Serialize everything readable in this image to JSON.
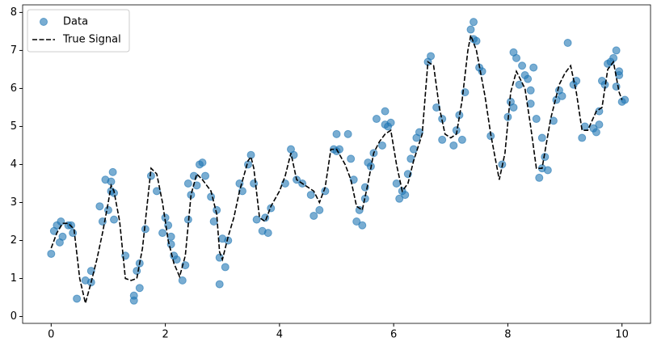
{
  "chart_data": {
    "type": "scatter",
    "xlim": [
      -0.5,
      10.5
    ],
    "ylim": [
      -0.18,
      8.2
    ],
    "xticks": [
      0,
      2,
      4,
      6,
      8,
      10
    ],
    "yticks": [
      0,
      1,
      2,
      3,
      4,
      5,
      6,
      7,
      8
    ],
    "legend": "upper left",
    "series": [
      {
        "name": "Data",
        "type": "scatter",
        "color": "#1f77b4",
        "x": [
          0,
          0.05,
          0.1,
          0.15,
          0.17,
          0.2,
          0.3,
          0.35,
          0.38,
          0.45,
          0.6,
          0.7,
          0.7,
          0.85,
          0.9,
          0.95,
          1.0,
          1.05,
          1.08,
          1.1,
          1.05,
          1.1,
          1.3,
          1.45,
          1.45,
          1.5,
          1.55,
          1.55,
          1.65,
          1.75,
          1.85,
          1.95,
          2.0,
          2.05,
          2.1,
          2.1,
          2.15,
          2.2,
          2.3,
          2.35,
          2.4,
          2.4,
          2.45,
          2.5,
          2.55,
          2.6,
          2.65,
          2.7,
          2.8,
          2.85,
          2.9,
          2.95,
          2.95,
          3.0,
          3.05,
          3.1,
          3.3,
          3.35,
          3.45,
          3.5,
          3.55,
          3.6,
          3.7,
          3.75,
          3.8,
          3.85,
          4.1,
          4.2,
          4.25,
          4.3,
          4.4,
          4.55,
          4.6,
          4.7,
          4.8,
          4.95,
          5.0,
          5.0,
          5.05,
          5.2,
          5.25,
          5.3,
          5.35,
          5.4,
          5.45,
          5.5,
          5.5,
          5.55,
          5.6,
          5.65,
          5.7,
          5.8,
          5.85,
          5.85,
          5.9,
          5.95,
          6.05,
          6.1,
          6.15,
          6.2,
          6.25,
          6.3,
          6.35,
          6.4,
          6.45,
          6.6,
          6.65,
          6.75,
          6.85,
          6.85,
          7.05,
          7.1,
          7.15,
          7.2,
          7.25,
          7.35,
          7.4,
          7.4,
          7.45,
          7.5,
          7.55,
          7.7,
          7.9,
          8.0,
          8.05,
          8.1,
          8.1,
          8.15,
          8.2,
          8.25,
          8.3,
          8.35,
          8.4,
          8.4,
          8.45,
          8.5,
          8.55,
          8.6,
          8.6,
          8.65,
          8.7,
          8.8,
          8.85,
          8.9,
          8.95,
          9.05,
          9.15,
          9.2,
          9.3,
          9.35,
          9.5,
          9.55,
          9.6,
          9.6,
          9.65,
          9.7,
          9.75,
          9.8,
          9.85,
          9.9,
          9.9,
          9.95,
          9.95,
          10.0,
          10.05
        ],
        "values": [
          1.65,
          2.25,
          2.4,
          1.95,
          2.5,
          2.1,
          2.4,
          2.4,
          2.2,
          0.47,
          0.95,
          0.9,
          1.2,
          2.9,
          2.5,
          3.6,
          2.8,
          3.3,
          3.8,
          3.25,
          3.55,
          2.55,
          1.6,
          0.55,
          0.42,
          1.2,
          0.75,
          1.4,
          2.3,
          3.7,
          3.3,
          2.2,
          2.6,
          2.4,
          2.1,
          1.9,
          1.6,
          1.5,
          0.95,
          1.35,
          2.55,
          3.5,
          3.2,
          3.7,
          3.45,
          4.0,
          4.05,
          3.7,
          3.15,
          2.5,
          2.8,
          0.85,
          1.55,
          2.05,
          1.3,
          2.0,
          3.5,
          3.3,
          4.0,
          4.25,
          3.5,
          2.55,
          2.25,
          2.6,
          2.2,
          2.85,
          3.5,
          4.4,
          4.25,
          3.6,
          3.5,
          3.2,
          2.65,
          2.8,
          3.3,
          4.4,
          4.8,
          4.35,
          4.4,
          4.8,
          4.15,
          3.6,
          2.5,
          2.8,
          2.4,
          3.1,
          3.4,
          4.05,
          3.95,
          4.3,
          5.2,
          4.5,
          5.4,
          5.05,
          5.0,
          5.1,
          3.5,
          3.1,
          3.3,
          3.2,
          3.75,
          4.15,
          4.4,
          4.7,
          4.85,
          6.7,
          6.85,
          5.5,
          5.2,
          4.65,
          4.5,
          4.9,
          5.3,
          4.65,
          5.9,
          7.55,
          7.75,
          7.3,
          7.25,
          6.55,
          6.45,
          4.75,
          4.0,
          5.25,
          5.65,
          5.5,
          6.95,
          6.8,
          6.1,
          6.6,
          6.35,
          6.25,
          5.6,
          5.95,
          6.55,
          5.2,
          3.65,
          4.7,
          3.9,
          4.2,
          3.85,
          5.15,
          5.7,
          5.95,
          5.8,
          7.2,
          6.1,
          6.2,
          4.7,
          5.0,
          4.95,
          4.85,
          5.05,
          5.4,
          6.2,
          6.1,
          6.65,
          6.7,
          6.8,
          7.0,
          6.05,
          6.45,
          6.35,
          5.65,
          5.7
        ]
      },
      {
        "name": "True Signal",
        "type": "line",
        "color": "#000000",
        "x": [
          0,
          0.1,
          0.2,
          0.3,
          0.4,
          0.5,
          0.6,
          0.7,
          0.8,
          0.9,
          1.0,
          1.05,
          1.1,
          1.2,
          1.3,
          1.4,
          1.5,
          1.6,
          1.7,
          1.75,
          1.85,
          1.95,
          2.05,
          2.15,
          2.25,
          2.35,
          2.45,
          2.55,
          2.65,
          2.8,
          2.9,
          2.95,
          3.0,
          3.1,
          3.2,
          3.3,
          3.45,
          3.5,
          3.55,
          3.65,
          3.75,
          3.85,
          4.0,
          4.1,
          4.2,
          4.3,
          4.5,
          4.6,
          4.7,
          4.8,
          4.9,
          5.0,
          5.15,
          5.25,
          5.35,
          5.45,
          5.55,
          5.65,
          5.75,
          5.85,
          5.95,
          6.05,
          6.15,
          6.25,
          6.35,
          6.5,
          6.6,
          6.7,
          6.8,
          6.9,
          7.0,
          7.1,
          7.2,
          7.3,
          7.35,
          7.45,
          7.6,
          7.7,
          7.85,
          7.95,
          8.05,
          8.15,
          8.3,
          8.4,
          8.5,
          8.6,
          8.75,
          8.9,
          9.0,
          9.1,
          9.2,
          9.3,
          9.4,
          9.55,
          9.65,
          9.75,
          9.85,
          9.95,
          10.0
        ],
        "values": [
          1.8,
          2.2,
          2.45,
          2.45,
          2.3,
          1.0,
          0.35,
          0.9,
          1.5,
          2.2,
          3.0,
          3.45,
          3.3,
          2.5,
          1.0,
          0.95,
          1.0,
          1.8,
          3.2,
          3.9,
          3.75,
          3.0,
          2.0,
          1.4,
          1.05,
          1.6,
          3.2,
          3.75,
          3.6,
          3.3,
          2.7,
          1.7,
          1.5,
          2.1,
          2.6,
          3.3,
          4.1,
          4.2,
          3.9,
          2.6,
          2.5,
          2.9,
          3.3,
          3.7,
          4.3,
          3.6,
          3.4,
          3.3,
          3.0,
          3.4,
          4.4,
          4.4,
          4.0,
          3.6,
          2.9,
          2.8,
          3.5,
          4.3,
          4.6,
          4.8,
          4.9,
          4.0,
          3.3,
          3.5,
          4.1,
          4.8,
          6.7,
          6.6,
          5.5,
          4.8,
          4.7,
          4.8,
          5.7,
          7.0,
          7.4,
          7.0,
          5.8,
          4.8,
          3.6,
          4.3,
          5.9,
          6.45,
          6.0,
          5.0,
          3.9,
          3.9,
          5.2,
          6.1,
          6.4,
          6.6,
          5.9,
          4.9,
          4.9,
          5.4,
          5.5,
          6.5,
          6.7,
          5.9,
          5.7
        ]
      }
    ]
  }
}
